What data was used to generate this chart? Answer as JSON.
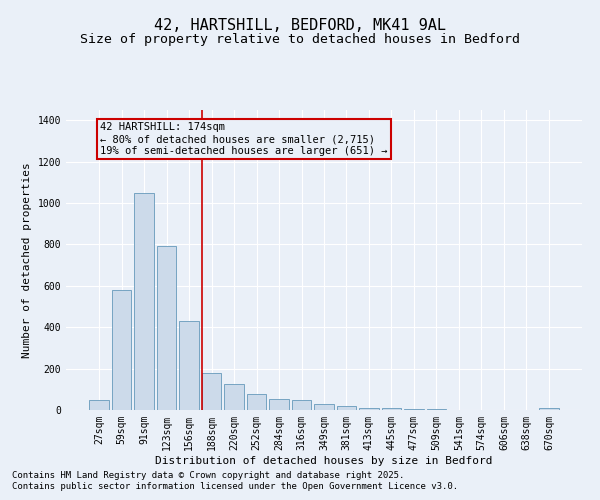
{
  "title": "42, HARTSHILL, BEDFORD, MK41 9AL",
  "subtitle": "Size of property relative to detached houses in Bedford",
  "xlabel": "Distribution of detached houses by size in Bedford",
  "ylabel": "Number of detached properties",
  "categories": [
    "27sqm",
    "59sqm",
    "91sqm",
    "123sqm",
    "156sqm",
    "188sqm",
    "220sqm",
    "252sqm",
    "284sqm",
    "316sqm",
    "349sqm",
    "381sqm",
    "413sqm",
    "445sqm",
    "477sqm",
    "509sqm",
    "541sqm",
    "574sqm",
    "606sqm",
    "638sqm",
    "670sqm"
  ],
  "values": [
    50,
    580,
    1050,
    795,
    430,
    180,
    125,
    75,
    55,
    50,
    30,
    20,
    12,
    8,
    5,
    3,
    2,
    1,
    0,
    0,
    10
  ],
  "bar_color": "#ccdaea",
  "bar_edge_color": "#6699bb",
  "background_color": "#eaf0f8",
  "grid_color": "#ffffff",
  "annotation_line1": "42 HARTSHILL: 174sqm",
  "annotation_line2": "← 80% of detached houses are smaller (2,715)",
  "annotation_line3": "19% of semi-detached houses are larger (651) →",
  "annotation_box_color": "#cc0000",
  "vline_x": 4.57,
  "vline_color": "#cc0000",
  "ylim": [
    0,
    1450
  ],
  "yticks": [
    0,
    200,
    400,
    600,
    800,
    1000,
    1200,
    1400
  ],
  "footnote1": "Contains HM Land Registry data © Crown copyright and database right 2025.",
  "footnote2": "Contains public sector information licensed under the Open Government Licence v3.0.",
  "title_fontsize": 11,
  "subtitle_fontsize": 9.5,
  "axis_label_fontsize": 8,
  "tick_fontsize": 7,
  "annotation_fontsize": 7.5,
  "footnote_fontsize": 6.5
}
